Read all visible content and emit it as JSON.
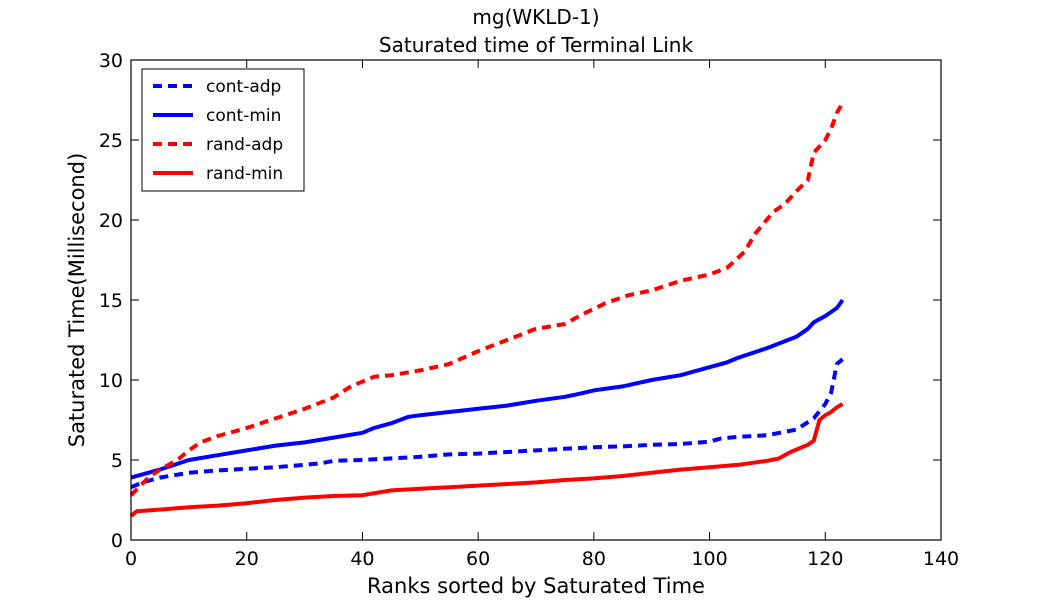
{
  "chart_data": {
    "type": "line",
    "title": "mg(WKLD-1)",
    "subtitle": "Saturated time of Terminal Link",
    "xlabel": "Ranks sorted by Saturated Time",
    "ylabel": "Saturated Time(Millisecond)",
    "xlim": [
      0,
      140
    ],
    "ylim": [
      0,
      30
    ],
    "xticks": [
      0,
      20,
      40,
      60,
      80,
      100,
      120,
      140
    ],
    "yticks": [
      0,
      5,
      10,
      15,
      20,
      25,
      30
    ],
    "grid": false,
    "legend_position": "top-left",
    "series": [
      {
        "name": "cont-adp",
        "color": "#0000ff",
        "style": "dashed",
        "x": [
          0,
          2,
          5,
          10,
          15,
          20,
          25,
          30,
          33,
          35,
          40,
          45,
          50,
          55,
          60,
          65,
          70,
          75,
          80,
          85,
          90,
          95,
          100,
          102,
          105,
          110,
          115,
          118,
          120,
          121,
          122,
          123
        ],
        "y": [
          3.3,
          3.6,
          3.9,
          4.2,
          4.35,
          4.45,
          4.55,
          4.7,
          4.8,
          4.95,
          5.0,
          5.1,
          5.2,
          5.35,
          5.4,
          5.5,
          5.6,
          5.7,
          5.8,
          5.85,
          5.95,
          6.0,
          6.15,
          6.35,
          6.45,
          6.55,
          6.9,
          7.6,
          8.5,
          9.2,
          11.0,
          11.3
        ]
      },
      {
        "name": "cont-min",
        "color": "#0000ff",
        "style": "solid",
        "x": [
          0,
          5,
          10,
          15,
          20,
          25,
          30,
          35,
          40,
          42,
          45,
          48,
          50,
          55,
          60,
          65,
          70,
          75,
          77,
          80,
          85,
          90,
          95,
          100,
          103,
          105,
          110,
          115,
          117,
          118,
          120,
          122,
          123
        ],
        "y": [
          3.9,
          4.4,
          5.0,
          5.3,
          5.6,
          5.9,
          6.1,
          6.4,
          6.7,
          7.0,
          7.3,
          7.7,
          7.8,
          8.0,
          8.2,
          8.4,
          8.7,
          8.95,
          9.1,
          9.35,
          9.6,
          10.0,
          10.3,
          10.8,
          11.1,
          11.4,
          12.0,
          12.7,
          13.2,
          13.6,
          14.0,
          14.5,
          15.0
        ]
      },
      {
        "name": "rand-adp",
        "color": "#ff0000",
        "style": "dashed",
        "x": [
          0,
          3,
          5,
          8,
          10,
          12,
          15,
          20,
          25,
          30,
          35,
          38,
          42,
          45,
          50,
          55,
          60,
          65,
          70,
          75,
          78,
          82,
          86,
          90,
          95,
          100,
          103,
          106,
          108,
          111,
          113,
          115,
          117,
          118,
          120,
          121,
          122,
          123
        ],
        "y": [
          2.8,
          3.9,
          4.4,
          5.0,
          5.6,
          6.1,
          6.5,
          7.0,
          7.6,
          8.2,
          8.9,
          9.6,
          10.2,
          10.3,
          10.6,
          11.0,
          11.8,
          12.5,
          13.2,
          13.5,
          14.1,
          14.8,
          15.3,
          15.6,
          16.2,
          16.6,
          17.0,
          18.0,
          19.2,
          20.5,
          21.0,
          21.8,
          22.5,
          24.2,
          25.0,
          25.7,
          26.7,
          27.3
        ]
      },
      {
        "name": "rand-min",
        "color": "#ff0000",
        "style": "solid",
        "x": [
          0,
          1,
          5,
          10,
          15,
          20,
          25,
          30,
          35,
          40,
          45,
          50,
          55,
          60,
          65,
          70,
          75,
          80,
          85,
          90,
          95,
          100,
          105,
          110,
          112,
          114,
          116,
          117,
          118,
          119,
          120,
          121,
          122,
          123
        ],
        "y": [
          1.5,
          1.8,
          1.9,
          2.05,
          2.15,
          2.3,
          2.5,
          2.65,
          2.75,
          2.8,
          3.1,
          3.2,
          3.3,
          3.4,
          3.5,
          3.6,
          3.75,
          3.85,
          4.0,
          4.2,
          4.4,
          4.55,
          4.7,
          4.95,
          5.1,
          5.5,
          5.8,
          5.95,
          6.2,
          7.5,
          7.8,
          8.0,
          8.3,
          8.5
        ]
      }
    ]
  }
}
